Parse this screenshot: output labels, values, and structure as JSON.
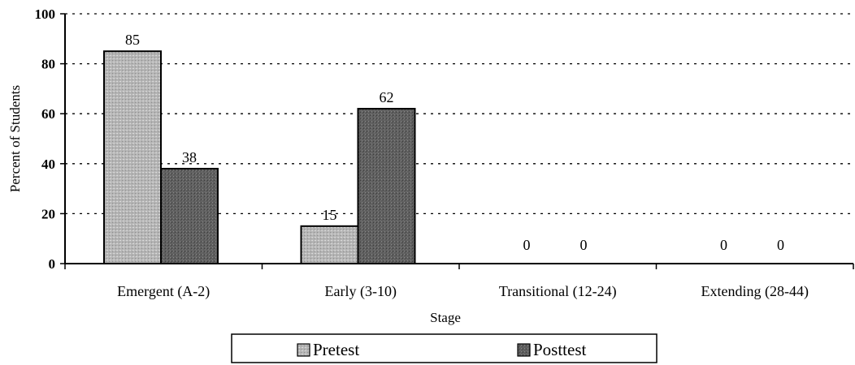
{
  "chart_data": {
    "type": "bar",
    "title": "",
    "xlabel": "Stage",
    "ylabel": "Percent of Students",
    "ylim": [
      0,
      100
    ],
    "yticks": [
      0,
      20,
      40,
      60,
      80,
      100
    ],
    "grid": "horizontal dotted",
    "legend_position": "bottom",
    "categories": [
      "Emergent (A-2)",
      "Early (3-10)",
      "Transitional (12-24)",
      "Extending (28-44)"
    ],
    "series": [
      {
        "name": "Pretest",
        "values": [
          85,
          15,
          0,
          0
        ],
        "color": "#a8a8a8"
      },
      {
        "name": "Posttest",
        "values": [
          38,
          62,
          0,
          0
        ],
        "color": "#5a5a5a"
      }
    ],
    "value_labels": true
  }
}
